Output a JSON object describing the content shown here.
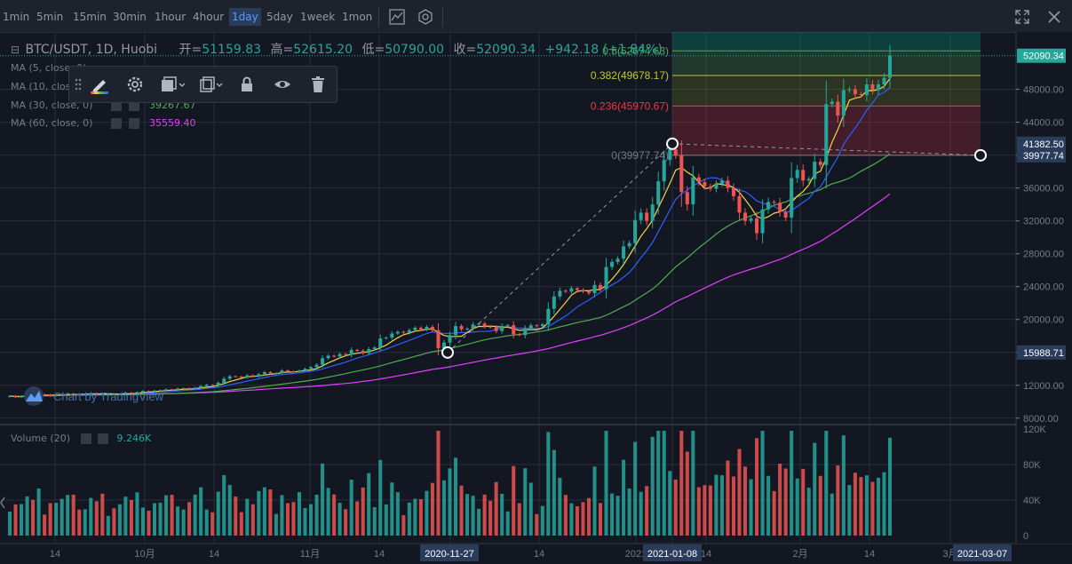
{
  "toolbar_top": {
    "intervals": [
      "1min",
      "5min",
      "15min",
      "30min",
      "1hour",
      "4hour",
      "1day",
      "5day",
      "1week",
      "1mon"
    ],
    "active_interval": "1day"
  },
  "legend": {
    "symbol": "BTC/USDT, 1D, Huobi",
    "open_label": "开=",
    "open": "51159.83",
    "high_label": "高=",
    "high": "52615.20",
    "low_label": "低=",
    "low": "50790.00",
    "close_label": "收=",
    "close": "52090.34",
    "change": "+942.18 (+1.84%)"
  },
  "ma": [
    {
      "label": "MA (5, close, 0)",
      "value": "",
      "color": "#f5d547"
    },
    {
      "label": "MA (10, close, 0)",
      "value": "",
      "color": "#2962ff"
    },
    {
      "label": "MA (30, close, 0)",
      "value": "39267.67",
      "color": "#4caf50"
    },
    {
      "label": "MA (60, close, 0)",
      "value": "35559.40",
      "color": "#e040fb"
    }
  ],
  "watermark": "Chart by TradingView",
  "volume_legend": {
    "label": "Volume (20)",
    "value": "9.246K"
  },
  "fib": {
    "levels": [
      {
        "ratio": 0,
        "label": "0(39977.74)",
        "price": 39977.74,
        "color": "#787b86"
      },
      {
        "ratio": 0.236,
        "label": "0.236(45970.67)",
        "price": 45970.67,
        "color": "#f23645"
      },
      {
        "ratio": 0.382,
        "label": "0.382(49678.17)",
        "price": 49678.17,
        "color": "#c0ca33"
      },
      {
        "ratio": 0.5,
        "label": "0.5(52674.63)",
        "price": 52674.63,
        "color": "#4caf50"
      }
    ]
  },
  "price_axis": {
    "ticks": [
      "8000.00",
      "12000.00",
      "16000.00",
      "20000.00",
      "24000.00",
      "28000.00",
      "32000.00",
      "36000.00",
      "40000.00",
      "44000.00",
      "48000.00"
    ],
    "badges": [
      {
        "text": "52090.34",
        "price": 52090.34,
        "bg": "#26a69a",
        "fg": "#ffffff"
      },
      {
        "text": "41382.50",
        "price": 41382.5,
        "bg": "#2a3c5c",
        "fg": "#ffffff"
      },
      {
        "text": "39977.74",
        "price": 39977.74,
        "bg": "#2a3c5c",
        "fg": "#ffffff"
      },
      {
        "text": "15988.71",
        "price": 15988.71,
        "bg": "#2a3c5c",
        "fg": "#ffffff"
      }
    ]
  },
  "volume_axis": {
    "ticks": [
      "120K",
      "80K",
      "40K",
      "0"
    ]
  },
  "time_axis": {
    "ticks": [
      "14",
      "10月",
      "14",
      "11月",
      "14",
      "14",
      "2021",
      "14",
      "2月",
      "14",
      "3月"
    ],
    "badges": [
      "2020-11-27",
      "2021-01-08",
      "2021-03-07"
    ]
  },
  "chart_data": {
    "type": "candlestick",
    "symbol": "BTC/USDT",
    "interval": "1D",
    "exchange": "Huobi",
    "price_range": [
      7500,
      56000
    ],
    "volume_range": [
      0,
      120000
    ],
    "anchors": [
      {
        "date": "2020-11-27",
        "price": 15988.71
      },
      {
        "date": "2021-01-08",
        "price": 41382.5
      },
      {
        "date": "2021-03-07",
        "price": 39977.74
      }
    ],
    "last": {
      "open": 51159.83,
      "high": 52615.2,
      "low": 50790.0,
      "close": 52090.34
    },
    "closes": [
      10700,
      10550,
      10650,
      10800,
      10750,
      10900,
      10850,
      10700,
      10800,
      10900,
      11000,
      10950,
      10850,
      10900,
      11050,
      11000,
      10900,
      10950,
      10850,
      10950,
      11100,
      11050,
      11150,
      11300,
      11250,
      11350,
      11400,
      11500,
      11450,
      11600,
      11650,
      11550,
      11700,
      11900,
      12050,
      12000,
      12300,
      12800,
      13100,
      13050,
      12950,
      13200,
      13100,
      13350,
      13600,
      13450,
      13500,
      13800,
      13700,
      13650,
      13800,
      14000,
      14200,
      14500,
      15300,
      15600,
      15500,
      15800,
      15700,
      16300,
      16200,
      15900,
      16400,
      16600,
      17700,
      17800,
      18300,
      18500,
      18400,
      18700,
      19000,
      18800,
      19100,
      18700,
      16500,
      17200,
      18100,
      19200,
      18800,
      18900,
      19400,
      19500,
      19150,
      19050,
      18600,
      19200,
      19300,
      18200,
      18100,
      18900,
      19300,
      19200,
      19400,
      21300,
      22800,
      23500,
      23400,
      23800,
      23600,
      23400,
      23200,
      24200,
      23700,
      26400,
      27000,
      27400,
      28900,
      29300,
      32100,
      33000,
      32000,
      34000,
      36800,
      39400,
      40700,
      40000,
      35500,
      34000,
      37300,
      36700,
      36200,
      35900,
      36500,
      36900,
      36000,
      35000,
      33000,
      32000,
      32300,
      30500,
      33400,
      34300,
      34200,
      33100,
      32400,
      37200,
      38200,
      36900,
      37100,
      39200,
      38800,
      46200,
      46500,
      44800,
      47900,
      48000,
      47400,
      47300,
      48600,
      47900,
      48600,
      49400,
      52100
    ]
  }
}
